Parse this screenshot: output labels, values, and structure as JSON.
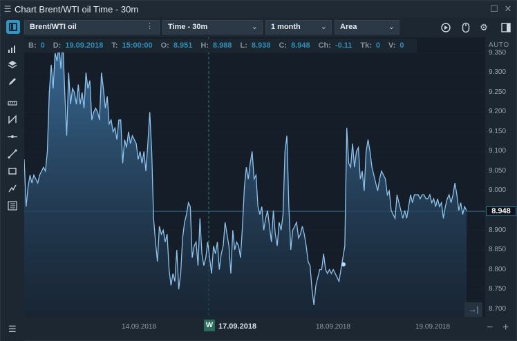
{
  "window": {
    "title": "Chart Brent/WTI oil Time - 30m"
  },
  "toolbar": {
    "symbol": "Brent/WTI oil",
    "timeframe": "Time - 30m",
    "range": "1 month",
    "style": "Area",
    "icons": [
      "replay-icon",
      "mouse-icon",
      "gear-icon",
      "panel-icon"
    ]
  },
  "tools": [
    "chart-types-icon",
    "layers-icon",
    "pencil-icon",
    "ruler-icon",
    "pattern-icon",
    "horizontal-line-icon",
    "trend-line-icon",
    "rectangle-icon",
    "fib-icon",
    "templates-icon"
  ],
  "info": {
    "B_label": "B:",
    "B": "0",
    "D_label": "D:",
    "D": "19.09.2018",
    "T_label": "T:",
    "T": "15:00:00",
    "O_label": "O:",
    "O": "8.951",
    "H_label": "H:",
    "H": "8.988",
    "L_label": "L:",
    "L": "8.938",
    "C_label": "C:",
    "C": "8.948",
    "Ch_label": "Ch:",
    "Ch": "-0.11",
    "Tk_label": "Tk:",
    "Tk": "0",
    "V_label": "V:",
    "V": "0"
  },
  "axis": {
    "auto_label": "AUTO",
    "last_price": "8.948",
    "y_ticks": [
      "9.350",
      "9.300",
      "9.250",
      "9.200",
      "9.150",
      "9.100",
      "9.050",
      "9.000",
      "8.950",
      "8.900",
      "8.850",
      "8.800",
      "8.750",
      "8.700"
    ],
    "x_ticks": [
      "14.09.2018",
      "17.09.2018",
      "18.09.2018",
      "19.09.2018"
    ],
    "week_badge": "W",
    "scroll_end": "→|",
    "zoom_minus": "−",
    "zoom_plus": "+"
  },
  "colors": {
    "line": "#8fc4ee",
    "fill_top": "#3b6f9c",
    "fill_bottom": "#1a2a3b",
    "accent": "#2f97c7",
    "value_text": "#2d8fb8"
  },
  "chart_data": {
    "type": "area",
    "title": "",
    "xlabel": "",
    "ylabel": "",
    "ylim": [
      8.68,
      9.39
    ],
    "x_labels": [
      "14.09.2018",
      "17.09.2018",
      "18.09.2018",
      "19.09.2018"
    ],
    "values": [
      9.08,
      8.96,
      9.01,
      9.04,
      9.02,
      9.04,
      9.03,
      9.02,
      9.04,
      9.05,
      9.06,
      9.05,
      9.1,
      9.25,
      9.32,
      9.26,
      9.35,
      9.33,
      9.37,
      9.31,
      9.38,
      9.25,
      9.14,
      9.3,
      9.22,
      9.26,
      9.25,
      9.22,
      9.27,
      9.22,
      9.25,
      9.21,
      9.3,
      9.26,
      9.28,
      9.18,
      9.2,
      9.21,
      9.2,
      9.18,
      9.3,
      9.26,
      9.21,
      9.24,
      9.17,
      9.18,
      9.15,
      9.16,
      9.13,
      9.18,
      9.18,
      9.07,
      9.13,
      9.11,
      9.15,
      9.12,
      9.14,
      9.13,
      9.12,
      9.08,
      9.1,
      9.07,
      9.1,
      9.05,
      9.12,
      9.2,
      9.1,
      8.93,
      8.87,
      8.82,
      8.91,
      8.89,
      8.9,
      8.87,
      8.89,
      8.8,
      8.76,
      8.79,
      8.77,
      8.85,
      8.75,
      8.79,
      8.88,
      8.92,
      8.94,
      8.97,
      8.96,
      8.83,
      8.86,
      8.87,
      8.81,
      8.93,
      8.84,
      8.81,
      8.83,
      8.87,
      8.83,
      8.79,
      8.86,
      8.84,
      8.87,
      8.8,
      8.84,
      8.86,
      8.92,
      8.89,
      8.86,
      8.79,
      8.9,
      8.85,
      8.87,
      8.86,
      8.83,
      8.91,
      9.01,
      9.06,
      9.03,
      9.07,
      9.1,
      9.03,
      9.04,
      8.96,
      8.94,
      8.96,
      8.9,
      8.93,
      8.95,
      8.91,
      8.87,
      8.95,
      8.89,
      8.86,
      8.92,
      8.9,
      8.94,
      9.1,
      9.14,
      8.96,
      8.85,
      8.9,
      8.91,
      8.92,
      8.88,
      8.89,
      8.91,
      8.89,
      8.86,
      8.82,
      8.81,
      8.75,
      8.71,
      8.76,
      8.78,
      8.8,
      8.8,
      8.84,
      8.8,
      8.79,
      8.8,
      8.79,
      8.8,
      8.79,
      8.78,
      8.77,
      8.8,
      8.83,
      8.86,
      9.16,
      9.07,
      9.06,
      9.12,
      9.06,
      9.1,
      9.11,
      9.03,
      9.05,
      9.0,
      9.1,
      9.13,
      9.1,
      9.06,
      9.04,
      9.02,
      9.0,
      9.03,
      9.05,
      9.04,
      9.03,
      8.99,
      9.0,
      8.95,
      8.94,
      8.93,
      8.99,
      8.97,
      8.95,
      8.93,
      8.95,
      8.93,
      8.96,
      8.99,
      8.97,
      8.99,
      8.99,
      8.99,
      8.98,
      8.99,
      8.99,
      8.98,
      8.98,
      8.99,
      8.97,
      8.98,
      8.96,
      8.98,
      8.96,
      8.97,
      8.93,
      8.96,
      8.98,
      8.99,
      8.97,
      8.99,
      9.02,
      8.99,
      8.95,
      8.97,
      8.94,
      8.96,
      8.95
    ]
  }
}
